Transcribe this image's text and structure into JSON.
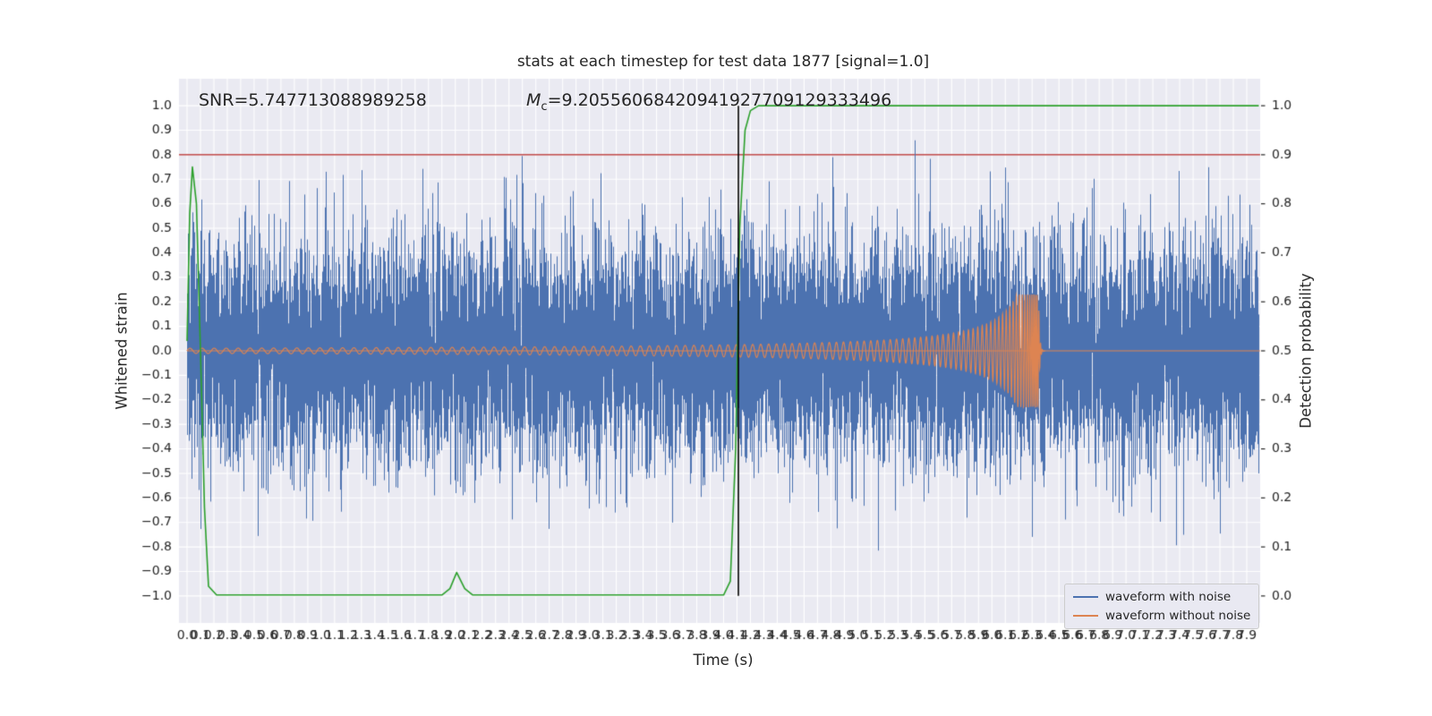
{
  "figure": {
    "title": "stats at each timestep for test data 1877 [signal=1.0]",
    "xlabel": "Time (s)",
    "ylabel_left": "Whitened strain",
    "ylabel_right": "Detection probability",
    "background": "#ffffff",
    "axes_background": "#eaeaf2",
    "grid_color": "#ffffff",
    "text_color": "#262626"
  },
  "annotations": {
    "snr_text": "SNR=5.747713088989258",
    "mc_prefix": "M",
    "mc_sub": "c",
    "mc_value": "=9.20556068420941927709129333496"
  },
  "legend": {
    "items": [
      {
        "label": "waveform with noise",
        "color": "#4c72b0"
      },
      {
        "label": "waveform without noise",
        "color": "#dd8452"
      }
    ]
  },
  "chart_data": {
    "type": "line",
    "title": "stats at each timestep for test data 1877 [signal=1.0]",
    "xlabel": "Time (s)",
    "ylabel_left": "Whitened strain",
    "ylabel_right": "Detection probability",
    "xlim": [
      -0.06,
      8.0
    ],
    "ylim_left": [
      -1.11,
      1.11
    ],
    "ylim_right": [
      0.0,
      1.0
    ],
    "grid": true,
    "legend_position": "lower right",
    "xticks": [
      "0.0",
      "0.1",
      "0.2",
      "0.3",
      "0.4",
      "0.5",
      "0.6",
      "0.7",
      "0.8",
      "0.9",
      "1.0",
      "1.1",
      "1.2",
      "1.3",
      "1.4",
      "1.5",
      "1.6",
      "1.7",
      "1.8",
      "1.9",
      "2.0",
      "2.1",
      "2.2",
      "2.3",
      "2.4",
      "2.5",
      "2.6",
      "2.7",
      "2.8",
      "2.9",
      "3.0",
      "3.1",
      "3.2",
      "3.3",
      "3.4",
      "3.5",
      "3.6",
      "3.7",
      "3.8",
      "3.9",
      "4.0",
      "4.1",
      "4.2",
      "4.3",
      "4.4",
      "4.5",
      "4.6",
      "4.7",
      "4.8",
      "4.9",
      "5.0",
      "5.1",
      "5.2",
      "5.3",
      "5.4",
      "5.5",
      "5.6",
      "5.7",
      "5.8",
      "5.9",
      "6.0",
      "6.1",
      "6.2",
      "6.3",
      "6.4",
      "6.5",
      "6.6",
      "6.7",
      "6.8",
      "6.9",
      "7.0",
      "7.1",
      "7.2",
      "7.3",
      "7.4",
      "7.5",
      "7.6",
      "7.7",
      "7.8",
      "7.9"
    ],
    "yticks_left": [
      "1.0",
      "0.9",
      "0.8",
      "0.7",
      "0.6",
      "0.5",
      "0.4",
      "0.3",
      "0.2",
      "0.1",
      "0.0",
      "−0.1",
      "−0.2",
      "−0.3",
      "−0.4",
      "−0.5",
      "−0.6",
      "−0.7",
      "−0.8",
      "−0.9",
      "−1.0"
    ],
    "yticks_right": [
      "1.0",
      "0.9",
      "0.8",
      "0.7",
      "0.6",
      "0.5",
      "0.4",
      "0.3",
      "0.2",
      "0.1",
      "0.0"
    ],
    "series": [
      {
        "name": "waveform with noise",
        "type": "noise",
        "axis": "left",
        "color": "#4c72b0",
        "sigma": 0.225,
        "samples_per_column": 10,
        "seed": 1877,
        "t_range": [
          0,
          7.99
        ]
      },
      {
        "name": "waveform without noise",
        "type": "chirp",
        "axis": "left",
        "color": "#dd8452",
        "t_range": [
          0,
          8.0
        ],
        "t_merger": 6.35,
        "amp_coef": 0.05,
        "amp_exponent": 0.84,
        "amp_max": 0.23,
        "freq_coef": 22,
        "freq_exponent": 0.375,
        "freq_max": 80
      },
      {
        "name": "detection probability",
        "type": "line",
        "axis": "right",
        "color": "#2ca02c",
        "points": [
          [
            0.0,
            0.52
          ],
          [
            0.02,
            0.78
          ],
          [
            0.04,
            0.875
          ],
          [
            0.07,
            0.8
          ],
          [
            0.1,
            0.5
          ],
          [
            0.13,
            0.18
          ],
          [
            0.16,
            0.02
          ],
          [
            0.22,
            0.002
          ],
          [
            1.9,
            0.002
          ],
          [
            1.96,
            0.015
          ],
          [
            2.01,
            0.048
          ],
          [
            2.07,
            0.015
          ],
          [
            2.13,
            0.002
          ],
          [
            4.0,
            0.002
          ],
          [
            4.05,
            0.03
          ],
          [
            4.09,
            0.3
          ],
          [
            4.12,
            0.75
          ],
          [
            4.16,
            0.95
          ],
          [
            4.2,
            0.99
          ],
          [
            4.26,
            1.0
          ],
          [
            7.99,
            1.0
          ]
        ]
      }
    ],
    "vline": {
      "x": 4.11,
      "color": "#000000",
      "y_range": [
        -1.0,
        1.0
      ]
    },
    "hline": {
      "y_left": 0.8,
      "y_right": 0.9,
      "color": "#b22222"
    }
  }
}
